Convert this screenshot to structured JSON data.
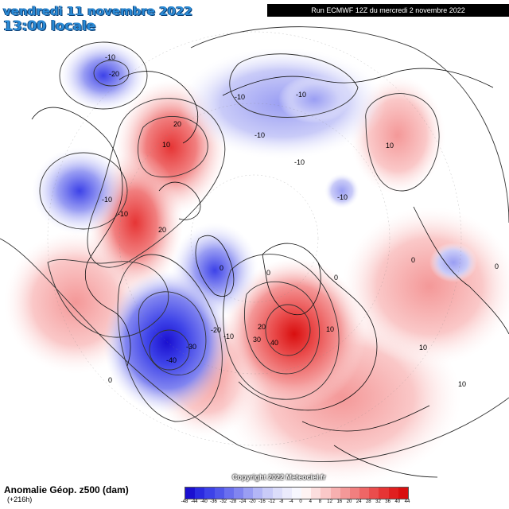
{
  "header": {
    "date_line": "vendredi 11 novembre 2022",
    "time_line": "13:00 locale",
    "run_info": "Run ECMWF 12Z du mercredi 2 novembre 2022"
  },
  "footer": {
    "field_title": "Anomalie Géop. z500 (dam)",
    "lead_time": "(+216h)",
    "copyright": "Copyright 2022 Meteociel.fr"
  },
  "colorbar": {
    "labels": [
      "-48",
      "-44",
      "-40",
      "-36",
      "-32",
      "-28",
      "-24",
      "-20",
      "-16",
      "-12",
      "-8",
      "-4",
      "0",
      "4",
      "8",
      "12",
      "16",
      "20",
      "24",
      "28",
      "32",
      "36",
      "40",
      "44"
    ],
    "colors": [
      "#1a0fd0",
      "#2a2ae0",
      "#3d42e8",
      "#5157ea",
      "#6a6fee",
      "#8185f0",
      "#9a9ef3",
      "#b3b6f6",
      "#c9cbf8",
      "#dcddfa",
      "#ebebfc",
      "#f7f7fe",
      "#fef3f3",
      "#fcdede",
      "#fac8c8",
      "#f7b0b0",
      "#f49898",
      "#f17f7f",
      "#ee6666",
      "#ea4d4d",
      "#e63535",
      "#e01f1f",
      "#d90f0f"
    ]
  },
  "map": {
    "contour_labels": [
      "-10",
      "-20",
      "-10",
      "-10",
      "-10",
      "-10",
      "-10",
      "-10",
      "-10",
      "20",
      "10",
      "10",
      "20",
      "0",
      "0",
      "0",
      "-30",
      "-40",
      "-20",
      "-10",
      "0",
      "20",
      "30",
      "40",
      "10",
      "0",
      "0",
      "10",
      "10"
    ]
  }
}
